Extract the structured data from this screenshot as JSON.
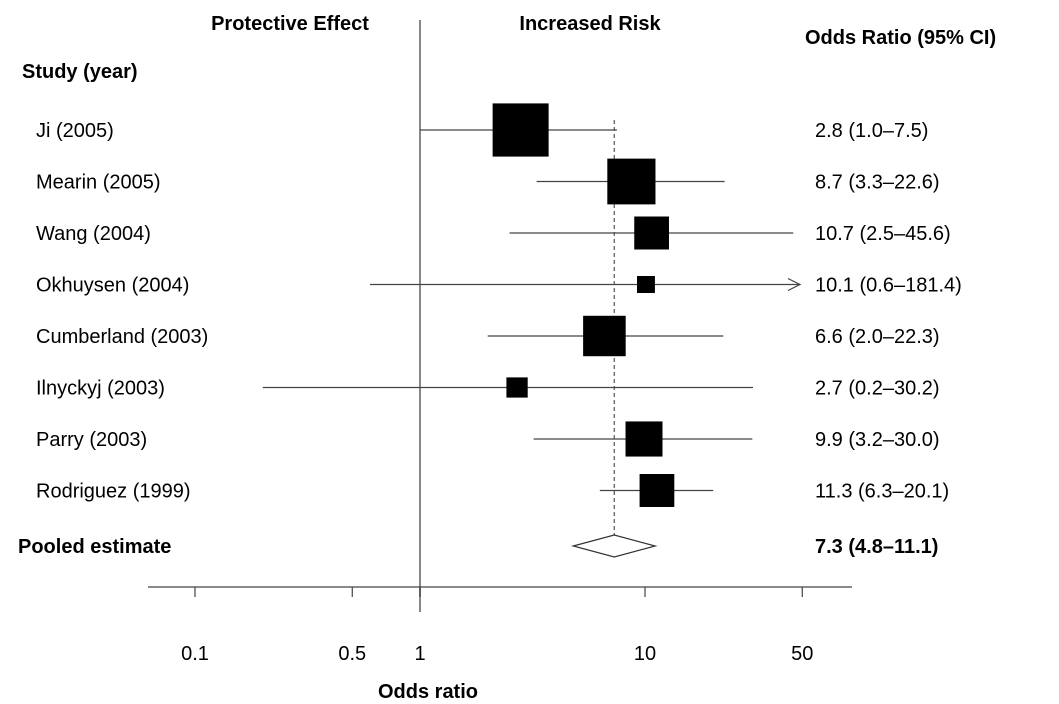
{
  "chart_data": {
    "type": "forest",
    "header_left": "Protective Effect",
    "header_right": "Increased Risk",
    "column_header_study": "Study (year)",
    "column_header_or": "Odds Ratio (95% CI)",
    "xlabel": "Odds ratio",
    "x_scale": "log",
    "x_ticks": [
      0.1,
      0.5,
      1,
      10,
      50
    ],
    "x_tick_labels": [
      "0.1",
      "0.5",
      "1",
      "10",
      "50"
    ],
    "xlim": [
      0.05,
      90
    ],
    "null_value": 1,
    "studies": [
      {
        "label": "Ji (2005)",
        "or": 2.8,
        "lo": 1.0,
        "hi": 7.5,
        "ci_text": "2.8 (1.0–7.5)",
        "weight": 1.0
      },
      {
        "label": "Mearin (2005)",
        "or": 8.7,
        "lo": 3.3,
        "hi": 22.6,
        "ci_text": "8.7 (3.3–22.6)",
        "weight": 0.86
      },
      {
        "label": "Wang (2004)",
        "or": 10.7,
        "lo": 2.5,
        "hi": 45.6,
        "ci_text": "10.7 (2.5–45.6)",
        "weight": 0.62
      },
      {
        "label": "Okhuysen (2004)",
        "or": 10.1,
        "lo": 0.6,
        "hi": 181.4,
        "ci_text": "10.1 (0.6–181.4)",
        "weight": 0.32
      },
      {
        "label": "Cumberland (2003)",
        "or": 6.6,
        "lo": 2.0,
        "hi": 22.3,
        "ci_text": "6.6 (2.0–22.3)",
        "weight": 0.76
      },
      {
        "label": "Ilnyckyj (2003)",
        "or": 2.7,
        "lo": 0.2,
        "hi": 30.2,
        "ci_text": "2.7 (0.2–30.2)",
        "weight": 0.38
      },
      {
        "label": "Parry (2003)",
        "or": 9.9,
        "lo": 3.2,
        "hi": 30.0,
        "ci_text": "9.9 (3.2–30.0)",
        "weight": 0.66
      },
      {
        "label": "Rodriguez (1999)",
        "or": 11.3,
        "lo": 6.3,
        "hi": 20.1,
        "ci_text": "11.3 (6.3–20.1)",
        "weight": 0.62
      }
    ],
    "pooled": {
      "label": "Pooled estimate",
      "or": 7.3,
      "lo": 4.8,
      "hi": 11.1,
      "ci_text": "7.3 (4.8–11.1)"
    },
    "colors": {
      "marks": "#000000",
      "pooled_fill": "#ffffff",
      "null_line": "#888888",
      "ref_line": "#555555"
    }
  }
}
